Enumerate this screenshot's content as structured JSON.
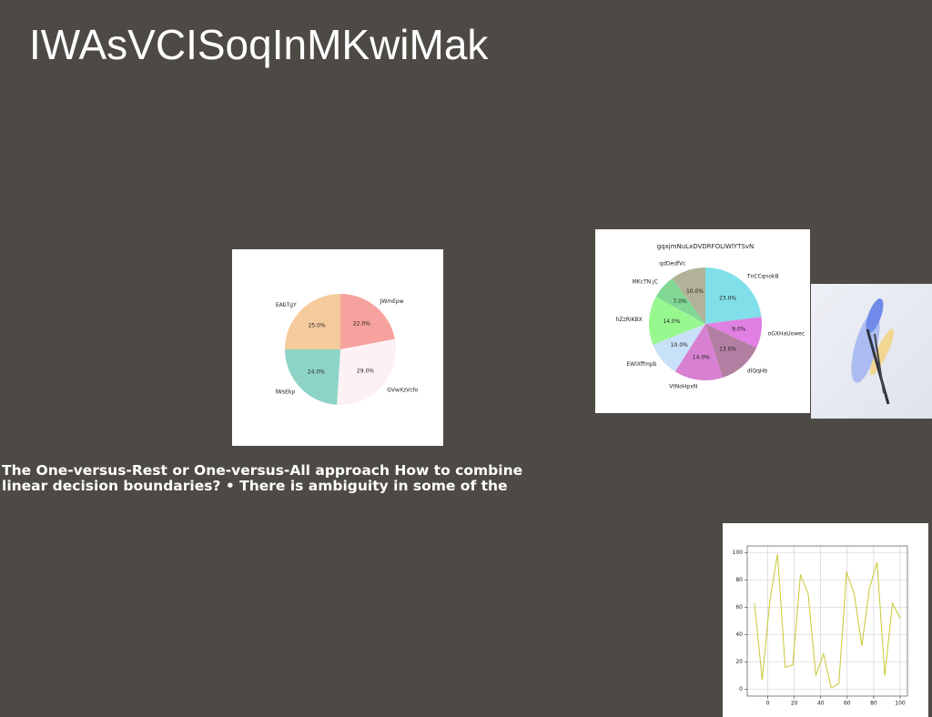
{
  "title": "IWAsVCISoqInMKwiMak",
  "text": "The One-versus-Rest or One-versus-All approach How to combine linear decision boundaries? • There is ambiguity in some of the",
  "chart_data": [
    {
      "type": "pie",
      "categories": [
        "JWmEpw",
        "GVwXzVcfo",
        "lWsEkp",
        "EAbTgY"
      ],
      "values": [
        22,
        29,
        24,
        25
      ],
      "value_labels": [
        "22.0%",
        "29.0%",
        "24.0%",
        "25.0%"
      ],
      "colors": [
        "#f6a29e",
        "#fdf1f5",
        "#8ed4c6",
        "#f5ca9c"
      ]
    },
    {
      "type": "pie",
      "title": "gqxjmNuLxDVDRFOLIWlYTSvN",
      "categories": [
        "TnCCqnokB",
        "oGXHaUowec",
        "dlQqHb",
        "VtNoHpxN",
        "EWlXffmpb",
        "hZzRiKBX",
        "MKcTN jC",
        "qdDedfVc"
      ],
      "values": [
        23,
        9,
        13,
        14,
        10,
        14,
        7,
        10
      ],
      "value_labels": [
        "23.0%",
        "9.0%",
        "13.0%",
        "14.0%",
        "10.0%",
        "14.0%",
        "7.0%",
        "10.0%"
      ],
      "colors": [
        "#80dfe8",
        "#e080e2",
        "#b27fa2",
        "#d880d2",
        "#c8e0f8",
        "#98f890",
        "#80d894",
        "#b2b298"
      ]
    },
    {
      "type": "line",
      "color": "#c8c832",
      "grid": true,
      "x": [
        -10,
        -4.2,
        1.6,
        7.4,
        13.2,
        18.9,
        24.7,
        30.5,
        36.3,
        42.1,
        47.9,
        53.7,
        59.5,
        65.3,
        71.1,
        76.8,
        82.6,
        88.4,
        94.2,
        100
      ],
      "values": [
        63,
        7,
        65,
        99,
        16,
        18,
        84,
        70,
        10,
        26,
        1,
        4,
        86,
        70,
        32,
        74,
        93,
        10,
        63,
        52
      ],
      "xlim": [
        -15.5,
        105.5
      ],
      "xticks": [
        0,
        20,
        40,
        60,
        80,
        100
      ],
      "ylim": [
        -5,
        105
      ],
      "yticks": [
        0,
        20,
        40,
        60,
        80,
        100
      ]
    }
  ]
}
